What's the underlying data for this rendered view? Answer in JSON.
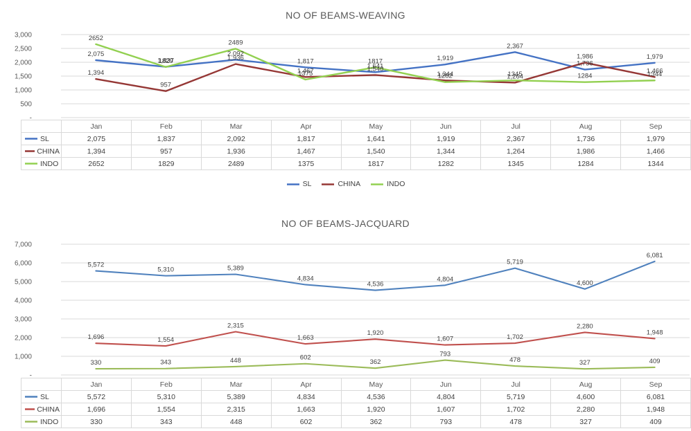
{
  "chart_data": [
    {
      "type": "line",
      "title": "NO OF BEAMS-WEAVING",
      "categories": [
        "Jan",
        "Feb",
        "Mar",
        "Apr",
        "May",
        "Jun",
        "Jul",
        "Aug",
        "Sep"
      ],
      "series": [
        {
          "name": "SL",
          "color": "#4472C4",
          "number_format": "comma",
          "values": [
            2075,
            1837,
            2092,
            1817,
            1641,
            1919,
            2367,
            1736,
            1979
          ]
        },
        {
          "name": "CHINA",
          "color": "#953735",
          "number_format": "comma",
          "values": [
            1394,
            957,
            1936,
            1467,
            1540,
            1344,
            1264,
            1986,
            1466
          ]
        },
        {
          "name": "INDO",
          "color": "#92D050",
          "number_format": "plain",
          "values": [
            2652,
            1829,
            2489,
            1375,
            1817,
            1282,
            1345,
            1284,
            1344
          ]
        }
      ],
      "ylim": [
        0,
        3000
      ],
      "yticks": [
        {
          "value": 0,
          "label": "-"
        },
        {
          "value": 500,
          "label": "500"
        },
        {
          "value": 1000,
          "label": "1,000"
        },
        {
          "value": 1500,
          "label": "1,500"
        },
        {
          "value": 2000,
          "label": "2,000"
        },
        {
          "value": 2500,
          "label": "2,500"
        },
        {
          "value": 3000,
          "label": "3,000"
        }
      ],
      "grid": true,
      "data_labels": true,
      "data_table": true,
      "legend": {
        "position": "bottom",
        "entries": [
          "SL",
          "CHINA",
          "INDO"
        ]
      }
    },
    {
      "type": "line",
      "title": "NO OF BEAMS-JACQUARD",
      "categories": [
        "Jan",
        "Feb",
        "Mar",
        "Apr",
        "May",
        "Jun",
        "Jul",
        "Aug",
        "Sep"
      ],
      "series": [
        {
          "name": "SL",
          "color": "#4F81BD",
          "number_format": "comma",
          "values": [
            5572,
            5310,
            5389,
            4834,
            4536,
            4804,
            5719,
            4600,
            6081
          ]
        },
        {
          "name": "CHINA",
          "color": "#C0504D",
          "number_format": "comma",
          "values": [
            1696,
            1554,
            2315,
            1663,
            1920,
            1607,
            1702,
            2280,
            1948
          ]
        },
        {
          "name": "INDO",
          "color": "#9BBB59",
          "number_format": "comma",
          "values": [
            330,
            343,
            448,
            602,
            362,
            793,
            478,
            327,
            409
          ]
        }
      ],
      "ylim": [
        0,
        7000
      ],
      "yticks": [
        {
          "value": 0,
          "label": "-"
        },
        {
          "value": 1000,
          "label": "1,000"
        },
        {
          "value": 2000,
          "label": "2,000"
        },
        {
          "value": 3000,
          "label": "3,000"
        },
        {
          "value": 4000,
          "label": "4,000"
        },
        {
          "value": 5000,
          "label": "5,000"
        },
        {
          "value": 6000,
          "label": "6,000"
        },
        {
          "value": 7000,
          "label": "7,000"
        }
      ],
      "grid": true,
      "data_labels": true,
      "data_table": true,
      "legend": null
    }
  ],
  "style": {
    "gridline_color": "#D9D9D9",
    "axis_label_color": "#595959",
    "data_label_color": "#404040",
    "table_border_color": "#D9D9D9"
  }
}
